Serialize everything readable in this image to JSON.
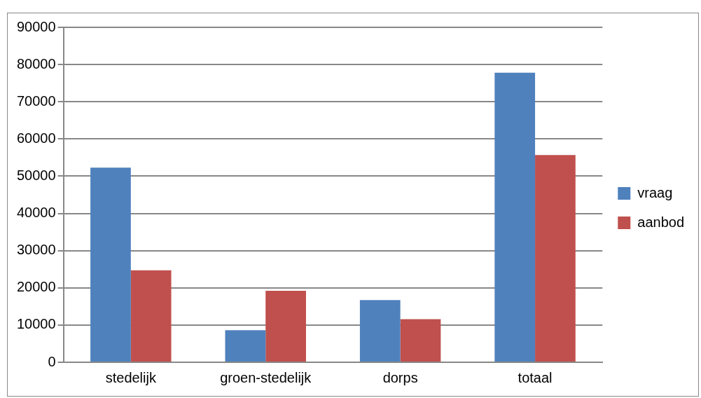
{
  "chart_data": {
    "type": "bar",
    "categories": [
      "stedelijk",
      "groen-stedelijk",
      "dorps",
      "totaal"
    ],
    "series": [
      {
        "name": "vraag",
        "color": "#4f81bd",
        "values": [
          52300,
          8600,
          16700,
          77800
        ]
      },
      {
        "name": "aanbod",
        "color": "#c0504d",
        "values": [
          24700,
          19200,
          11600,
          55700
        ]
      }
    ],
    "ylim": [
      0,
      90000
    ],
    "yticks": [
      0,
      10000,
      20000,
      30000,
      40000,
      50000,
      60000,
      70000,
      80000,
      90000
    ],
    "grid": "y",
    "legend": "right"
  }
}
